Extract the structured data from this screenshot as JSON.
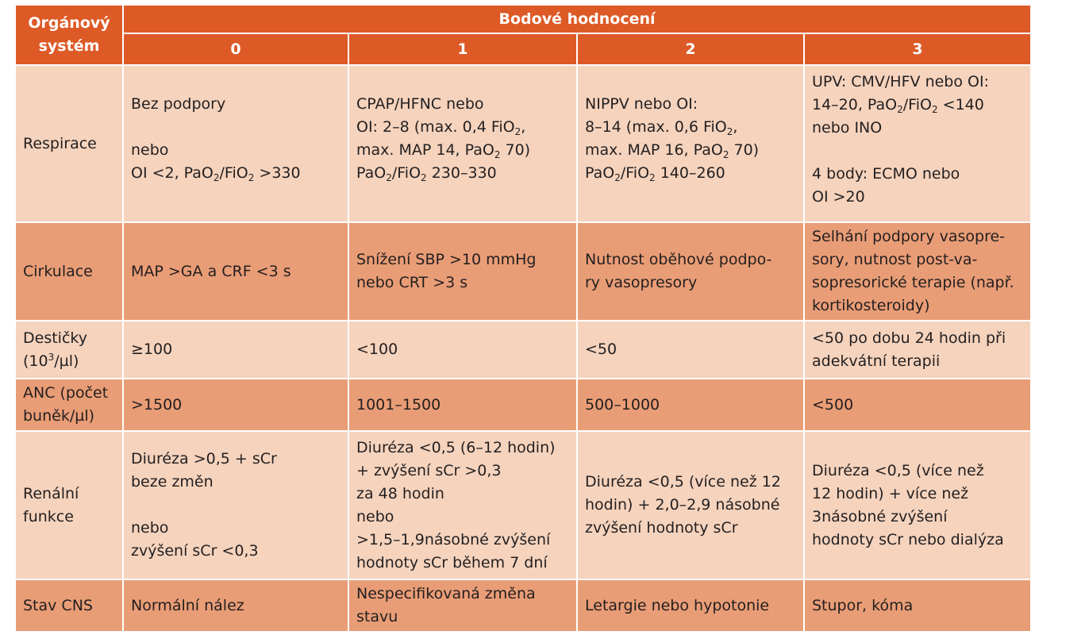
{
  "header": {
    "organ_system": "Orgánový systém",
    "organ_system_line1": "Orgánový",
    "organ_system_line2": "systém",
    "scoring": "Bodové hodnocení",
    "scores": [
      "0",
      "1",
      "2",
      "3"
    ]
  },
  "rows": {
    "respirace": {
      "label": "Respirace",
      "c0": {
        "l1": "Bez podpory",
        "l2": "nebo",
        "l3a": "OI <2, PaO",
        "l3b": "/FiO",
        "l3c": " >330"
      },
      "c1": {
        "l1": "CPAP/HFNC nebo",
        "l2a": "OI: 2–8 (max. 0,4 FiO",
        "l2b": ",",
        "l3": "max. MAP 14, PaO",
        "l3b": " 70)",
        "l4a": "PaO",
        "l4b": "/FiO",
        "l4c": " 230–330"
      },
      "c2": {
        "l1": "NIPPV nebo OI:",
        "l2a": "8–14 (max. 0,6 FiO",
        "l2b": ",",
        "l3": "max. MAP 16, PaO",
        "l3b": " 70)",
        "l4a": "PaO",
        "l4b": "/FiO",
        "l4c": " 140–260"
      },
      "c3": {
        "l1": "UPV: CMV/HFV nebo OI:",
        "l2a": "14–20, PaO",
        "l2b": "/FiO",
        "l2c": " <140",
        "l3": "nebo INO",
        "l4": "4 body: ECMO nebo",
        "l5": "OI >20"
      },
      "sub2": "2"
    },
    "cirkulace": {
      "label": "Cirkulace",
      "c0": "MAP >GA a CRF <3 s",
      "c1": [
        "Snížení SBP >10 mmHg",
        "nebo CRT >3 s"
      ],
      "c2": [
        "Nutnost oběhové podpo-",
        "ry vasopresory"
      ],
      "c3": [
        "Selhání podpory vasopre-",
        "sory, nutnost post-va-",
        "sopresorické terapie (např.",
        "kortikosteroidy)"
      ]
    },
    "desticky": {
      "label_l1": "Destičky",
      "label_l2a": "(10",
      "label_sup": "3",
      "label_l2b": "/µl)",
      "c0": "≥100",
      "c1": "<100",
      "c2": "<50",
      "c3": [
        "<50 po dobu 24 hodin při",
        "adekvátní terapii"
      ]
    },
    "anc": {
      "label": [
        "ANC (počet",
        "buněk/µl)"
      ],
      "c0": ">1500",
      "c1": "1001–1500",
      "c2": "500–1000",
      "c3": "<500"
    },
    "renalni": {
      "label": [
        "Renální",
        "funkce"
      ],
      "c0": [
        "Diuréza >0,5 + sCr",
        "beze změn",
        "nebo",
        "zvýšení sCr <0,3"
      ],
      "c1": [
        "Diuréza <0,5 (6–12 hodin)",
        "+ zvýšení sCr >0,3",
        "za 48 hodin",
        "nebo",
        ">1,5–1,9násobné zvýšení",
        "hodnoty sCr během 7 dní"
      ],
      "c2": [
        "Diuréza <0,5 (více než 12",
        "hodin) + 2,0–2,9 násobné",
        "zvýšení hodnoty sCr"
      ],
      "c3": [
        "Diuréza <0,5 (více než",
        "12 hodin) + více než",
        "3násobné zvýšení",
        "hodnoty sCr nebo dialýza"
      ]
    },
    "cns": {
      "label": "Stav CNS",
      "c0": "Normální nález",
      "c1": [
        "Nespecifikovaná změna",
        "stavu"
      ],
      "c2": "Letargie nebo hypotonie",
      "c3": "Stupor, kóma"
    }
  },
  "colors": {
    "header": "#dd5a27",
    "row_light": "#f5d3bd",
    "row_dark": "#e99d76"
  }
}
